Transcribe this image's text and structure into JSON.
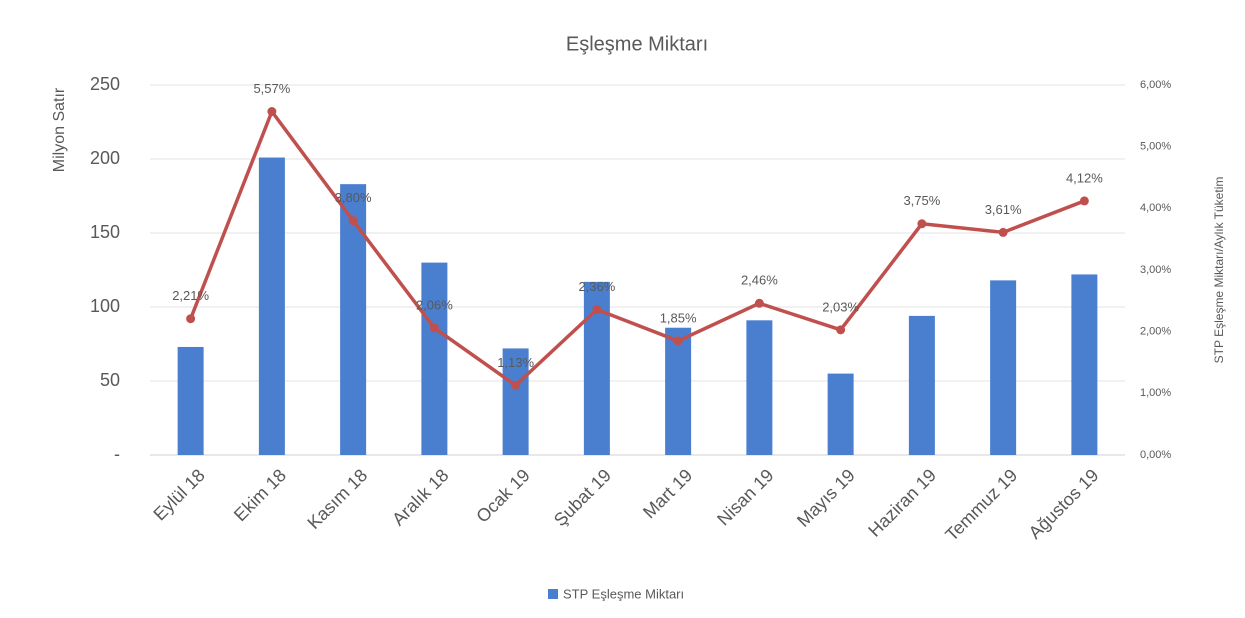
{
  "chart_data": {
    "type": "bar_line",
    "title": "Eşleşme Miktarı",
    "y_label": "Milyon Satır",
    "y2_label": "STP Eşleşme Miktarı/Aylık Tüketim",
    "categories": [
      "Eylül 18",
      "Ekim 18",
      "Kasım 18",
      "Aralık 18",
      "Ocak 19",
      "Şubat 19",
      "Mart 19",
      "Nisan 19",
      "Mayıs 19",
      "Haziran 19",
      "Temmuz 19",
      "Ağustos 19"
    ],
    "series": [
      {
        "name": "STP Eşleşme Miktarı",
        "type": "bar",
        "color": "#4a7fcf",
        "values": [
          73,
          201,
          183,
          130,
          72,
          117,
          86,
          91,
          55,
          94,
          118,
          122
        ]
      },
      {
        "type": "line",
        "axis": "y2",
        "color": "#c0504d",
        "values": [
          2.21,
          5.57,
          3.8,
          2.06,
          1.13,
          2.36,
          1.85,
          2.46,
          2.03,
          3.75,
          3.61,
          4.12
        ],
        "value_labels": [
          "2,21%",
          "5,57%",
          "3,80%",
          "2,06%",
          "1,13%",
          "2,36%",
          "1,85%",
          "2,46%",
          "2,03%",
          "3,75%",
          "3,61%",
          "4,12%"
        ]
      }
    ],
    "ylim": [
      0,
      250
    ],
    "yticks": [
      {
        "value": 0,
        "label": "-"
      },
      50,
      100,
      150,
      200,
      250
    ],
    "y2lim": [
      0,
      6
    ],
    "y2ticks": [
      {
        "value": 0,
        "label": "0,00%"
      },
      {
        "value": 1,
        "label": "1,00%"
      },
      {
        "value": 2,
        "label": "2,00%"
      },
      {
        "value": 3,
        "label": "3,00%"
      },
      {
        "value": 4,
        "label": "4,00%"
      },
      {
        "value": 5,
        "label": "5,00%"
      },
      {
        "value": 6,
        "label": "6,00%"
      }
    ],
    "grid": true,
    "legend": "bottom"
  }
}
